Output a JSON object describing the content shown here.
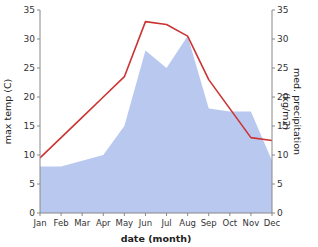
{
  "chart_data": {
    "type": "line",
    "categories": [
      "Jan",
      "Feb",
      "Mar",
      "Apr",
      "May",
      "Jun",
      "Jul",
      "Aug",
      "Sep",
      "Oct",
      "Nov",
      "Dec"
    ],
    "xlabel": "date (month)",
    "ylabel": "max temp (C)",
    "y2label": "med. precipitation\n(kg/m2)",
    "series": [
      {
        "type": "area",
        "axis": "y2",
        "color": "#b8c8ee",
        "values": [
          8.0,
          8.0,
          9.0,
          10.0,
          15.0,
          28.0,
          25.0,
          30.5,
          18.0,
          17.5,
          17.5,
          9.0
        ]
      },
      {
        "type": "line",
        "color": "#cc3333",
        "values": [
          9.5,
          13.0,
          16.5,
          20.0,
          23.5,
          33.0,
          32.5,
          30.5,
          23.0,
          18.0,
          13.0,
          12.5
        ]
      }
    ],
    "ylim": [
      0,
      35
    ],
    "yticks": [
      0,
      5,
      10,
      15,
      20,
      25,
      30,
      35
    ],
    "y2lim": [
      0,
      35
    ],
    "y2ticks": [
      0,
      5,
      10,
      15,
      20,
      25,
      30,
      35
    ],
    "grid": false
  }
}
